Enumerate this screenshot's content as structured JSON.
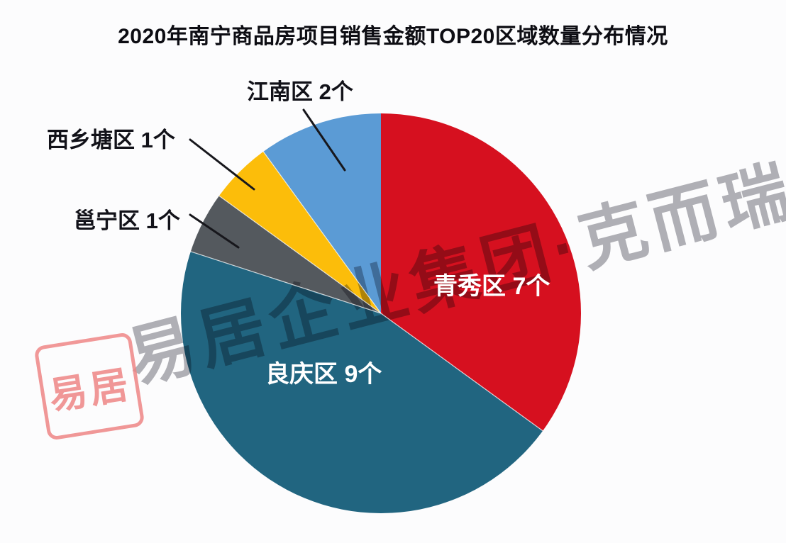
{
  "title": "2020年南宁商品房项目销售金额TOP20区域数量分布情况",
  "chart_data": {
    "type": "pie",
    "title": "2020年南宁商品房项目销售金额TOP20区域数量分布情况",
    "unit": "个",
    "total": 20,
    "direction": "clockwise",
    "start_angle": "12-oclock",
    "legend_position": "none",
    "slices": [
      {
        "label": "青秀区",
        "value": 7,
        "display": "青秀区 7个",
        "color": "#d6101f",
        "label_style": "inside-white"
      },
      {
        "label": "良庆区",
        "value": 9,
        "display": "良庆区 9个",
        "color": "#216580",
        "label_style": "inside-white"
      },
      {
        "label": "邕宁区",
        "value": 1,
        "display": "邕宁区 1个",
        "color": "#54595e",
        "label_style": "callout"
      },
      {
        "label": "西乡塘区",
        "value": 1,
        "display": "西乡塘区 1个",
        "color": "#fcbd0a",
        "label_style": "callout"
      },
      {
        "label": "江南区",
        "value": 2,
        "display": "江南区 2个",
        "color": "#5b9bd5",
        "label_style": "callout"
      }
    ]
  },
  "watermark": {
    "text": "易居企业集团·克而瑞",
    "color": "#a9a9af"
  },
  "seal": {
    "text": "易居",
    "color": "#ee8686"
  },
  "colors": {
    "background": "#fcfcfd",
    "title_text": "#0d0d13",
    "callout_text": "#121219",
    "inside_label_text": "#ffffff",
    "leader_line": "#17171c"
  }
}
